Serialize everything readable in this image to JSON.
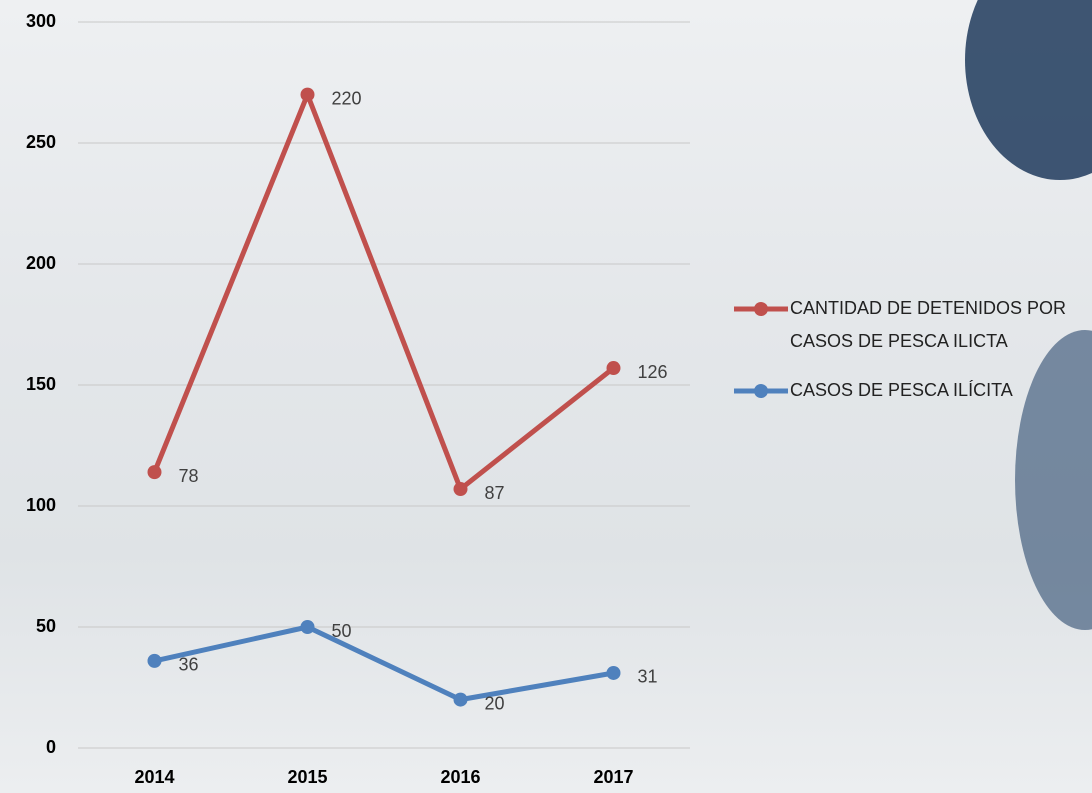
{
  "chart_data": {
    "type": "line",
    "stacked": true,
    "categories": [
      "2014",
      "2015",
      "2016",
      "2017"
    ],
    "series": [
      {
        "name": "CASOS DE PESCA ILÍCITA",
        "color": "#4f81bd",
        "values": [
          36,
          50,
          20,
          31
        ]
      },
      {
        "name": "CANTIDAD DE DETENIDOS POR CASOS DE PESCA ILICTA",
        "color": "#c0504d",
        "values": [
          78,
          220,
          87,
          126
        ]
      }
    ],
    "ylim": [
      0,
      300
    ],
    "yticks": [
      0,
      50,
      100,
      150,
      200,
      250,
      300
    ],
    "grid": true,
    "legend": "right"
  }
}
